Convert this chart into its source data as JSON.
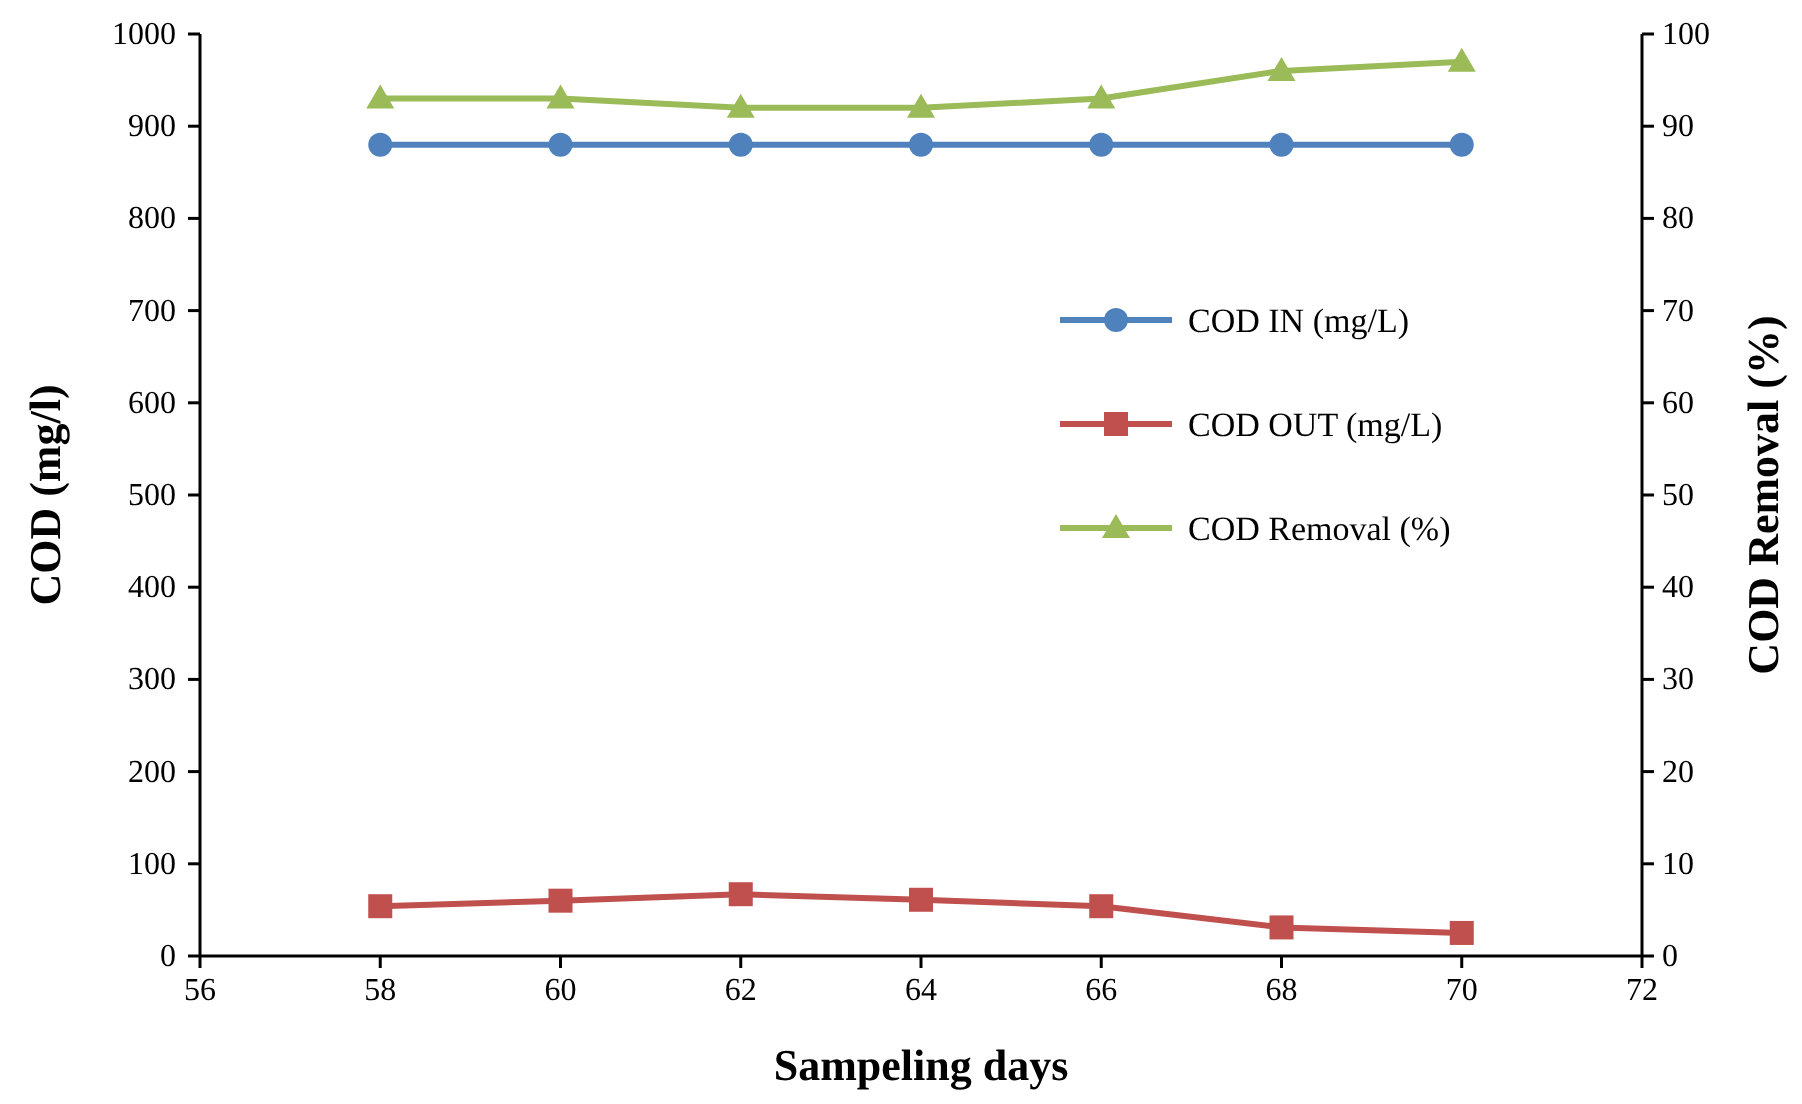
{
  "chart_data": {
    "type": "line",
    "xlabel": "Sampeling days",
    "ylabel": "COD (mg/l)",
    "y2label": "COD Removal (%)",
    "x": [
      58,
      60,
      62,
      64,
      66,
      68,
      70
    ],
    "xlim": [
      56,
      72
    ],
    "xticks": [
      56,
      58,
      60,
      62,
      64,
      66,
      68,
      70,
      72
    ],
    "ylim": [
      0,
      1000
    ],
    "yticks": [
      0,
      100,
      200,
      300,
      400,
      500,
      600,
      700,
      800,
      900,
      1000
    ],
    "y2lim": [
      0,
      100
    ],
    "y2ticks": [
      0,
      10,
      20,
      30,
      40,
      50,
      60,
      70,
      80,
      90,
      100
    ],
    "grid": false,
    "legend": "right",
    "series": [
      {
        "name": "COD IN (mg/L)",
        "color": "#4f81bd",
        "marker": "circle",
        "values": [
          880,
          880,
          880,
          880,
          880,
          880,
          880
        ]
      },
      {
        "name": "COD OUT (mg/L)",
        "color": "#c0504d",
        "marker": "square",
        "values": [
          54,
          60,
          67,
          61,
          54,
          31,
          25
        ]
      },
      {
        "name": "COD Removal (%)",
        "color": "#9bbb59",
        "marker": "triangle",
        "axis": "y2",
        "values": [
          93,
          93,
          92,
          92,
          93,
          96,
          97
        ]
      }
    ]
  }
}
